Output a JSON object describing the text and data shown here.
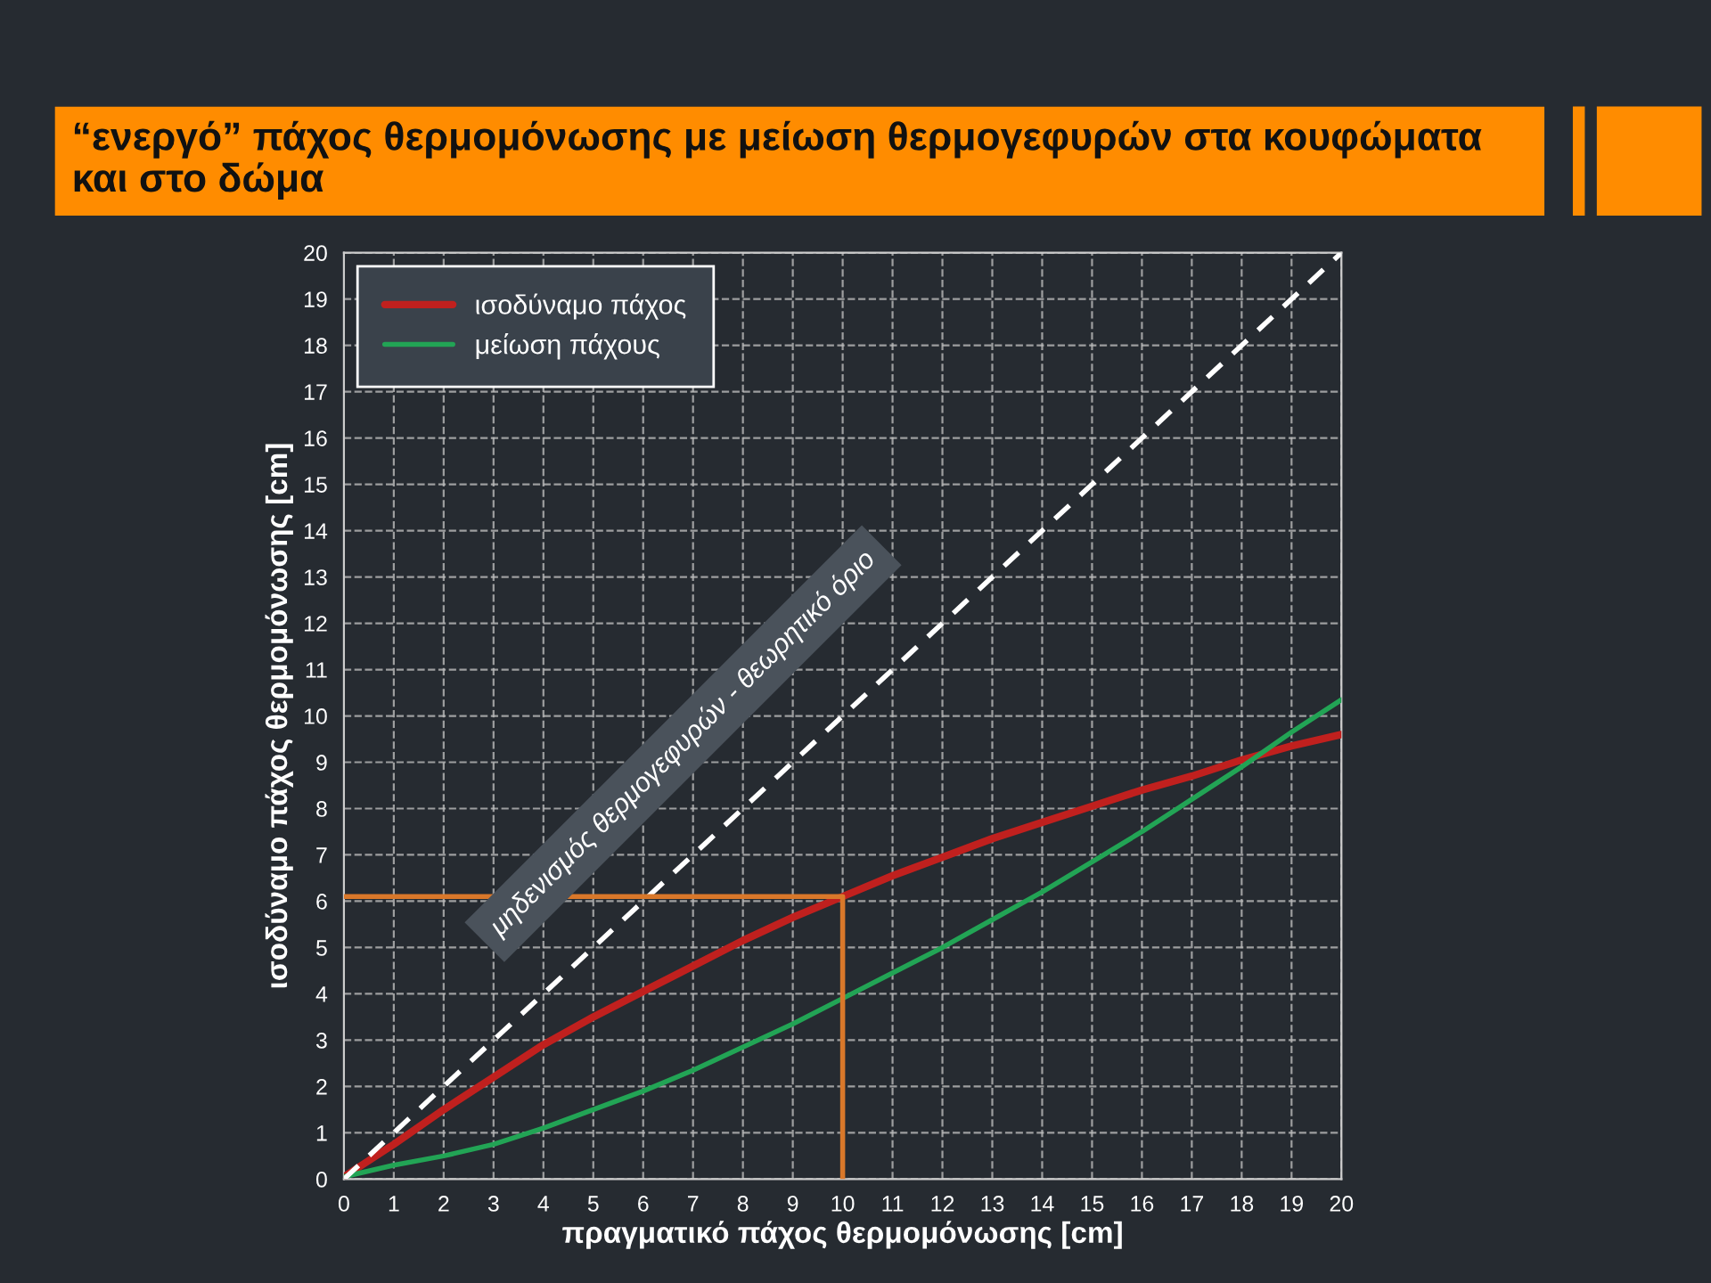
{
  "chart_data": {
    "type": "line",
    "title": "“ενεργό” πάχος θερμομόνωσης με μείωση θερμογεφυρών στα κουφώματα και στο δώμα",
    "xlabel": "πραγματικό πάχος θερμομόνωσης [cm]",
    "ylabel": "ισοδύναμο πάχος θερμομόνωσης [cm]",
    "x": [
      0,
      1,
      2,
      3,
      4,
      5,
      6,
      7,
      8,
      9,
      10,
      11,
      12,
      13,
      14,
      15,
      16,
      17,
      18,
      19,
      20
    ],
    "series": [
      {
        "name": "ισοδύναμο πάχος",
        "color": "#c0201e",
        "values": [
          0.05,
          0.75,
          1.5,
          2.2,
          2.9,
          3.5,
          4.05,
          4.6,
          5.15,
          5.65,
          6.1,
          6.55,
          6.95,
          7.35,
          7.7,
          8.05,
          8.4,
          8.7,
          9.05,
          9.35,
          9.6
        ]
      },
      {
        "name": "μείωση πάχους",
        "color": "#22a455",
        "values": [
          0.05,
          0.3,
          0.5,
          0.75,
          1.1,
          1.5,
          1.9,
          2.35,
          2.85,
          3.35,
          3.9,
          4.45,
          5.0,
          5.6,
          6.2,
          6.85,
          7.5,
          8.2,
          8.9,
          9.65,
          10.35
        ]
      },
      {
        "color": "#ffffff",
        "line_style": "dashed",
        "x": [
          0,
          20
        ],
        "values": [
          0,
          20
        ]
      },
      {
        "color": "#d9782a",
        "x": [
          10,
          10,
          0
        ],
        "values": [
          0,
          6.1,
          6.1
        ]
      }
    ],
    "annotations": [
      "μηδενισμός θερμογεφυρών - θεωρητικό όριο"
    ],
    "xlim": [
      0,
      20
    ],
    "ylim": [
      0,
      20
    ],
    "xticks": [
      0,
      1,
      2,
      3,
      4,
      5,
      6,
      7,
      8,
      9,
      10,
      11,
      12,
      13,
      14,
      15,
      16,
      17,
      18,
      19,
      20
    ],
    "yticks": [
      0,
      1,
      2,
      3,
      4,
      5,
      6,
      7,
      8,
      9,
      10,
      11,
      12,
      13,
      14,
      15,
      16,
      17,
      18,
      19,
      20
    ],
    "grid": true,
    "legend": "top left",
    "marker": "none"
  }
}
